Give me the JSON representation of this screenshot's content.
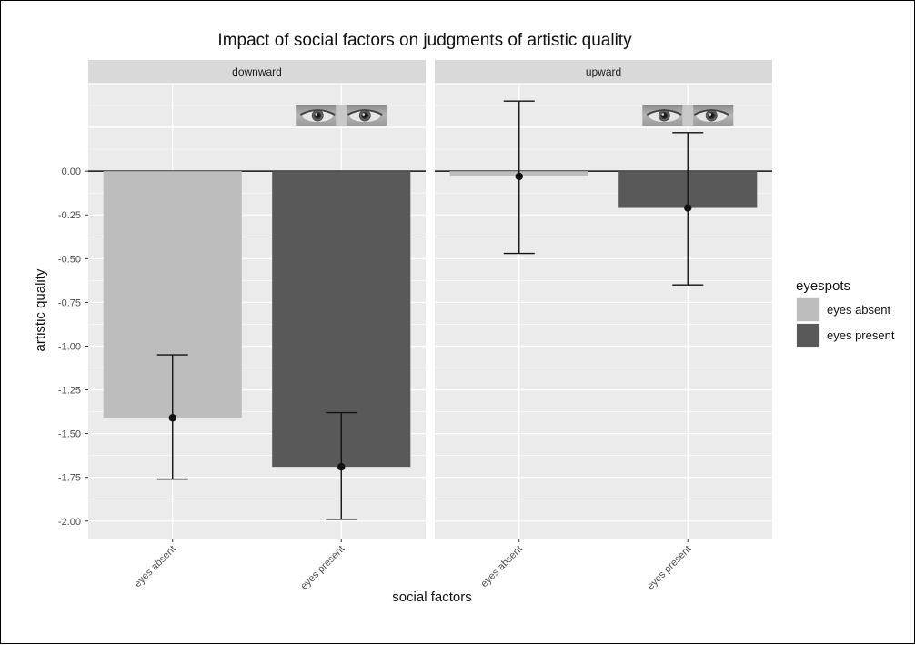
{
  "chart_data": {
    "type": "bar",
    "title": "Impact of social factors on judgments of artistic quality",
    "xlabel": "social factors",
    "ylabel": "artistic quality",
    "ylim": [
      -2.1,
      0.5
    ],
    "yticks": [
      "0.00",
      "-0.25",
      "-0.50",
      "-0.75",
      "-1.00",
      "-1.25",
      "-1.50",
      "-1.75",
      "-2.00"
    ],
    "categories": [
      "eyes absent",
      "eyes present"
    ],
    "grid": true,
    "legend": {
      "title": "eyespots",
      "position": "right",
      "entries": [
        {
          "label": "eyes absent",
          "color": "#bdbdbd"
        },
        {
          "label": "eyes present",
          "color": "#595959"
        }
      ]
    },
    "panels": [
      {
        "strip": "downward",
        "bars": [
          {
            "category": "eyes absent",
            "value": -1.41,
            "error_low": -1.76,
            "error_high": -1.05,
            "color": "#bdbdbd"
          },
          {
            "category": "eyes present",
            "value": -1.69,
            "error_low": -1.99,
            "error_high": -1.38,
            "color": "#595959",
            "eyes_image": true
          }
        ]
      },
      {
        "strip": "upward",
        "bars": [
          {
            "category": "eyes absent",
            "value": -0.03,
            "error_low": -0.47,
            "error_high": 0.4,
            "color": "#bdbdbd"
          },
          {
            "category": "eyes present",
            "value": -0.21,
            "error_low": -0.65,
            "error_high": 0.22,
            "color": "#595959",
            "eyes_image": true
          }
        ]
      }
    ]
  }
}
